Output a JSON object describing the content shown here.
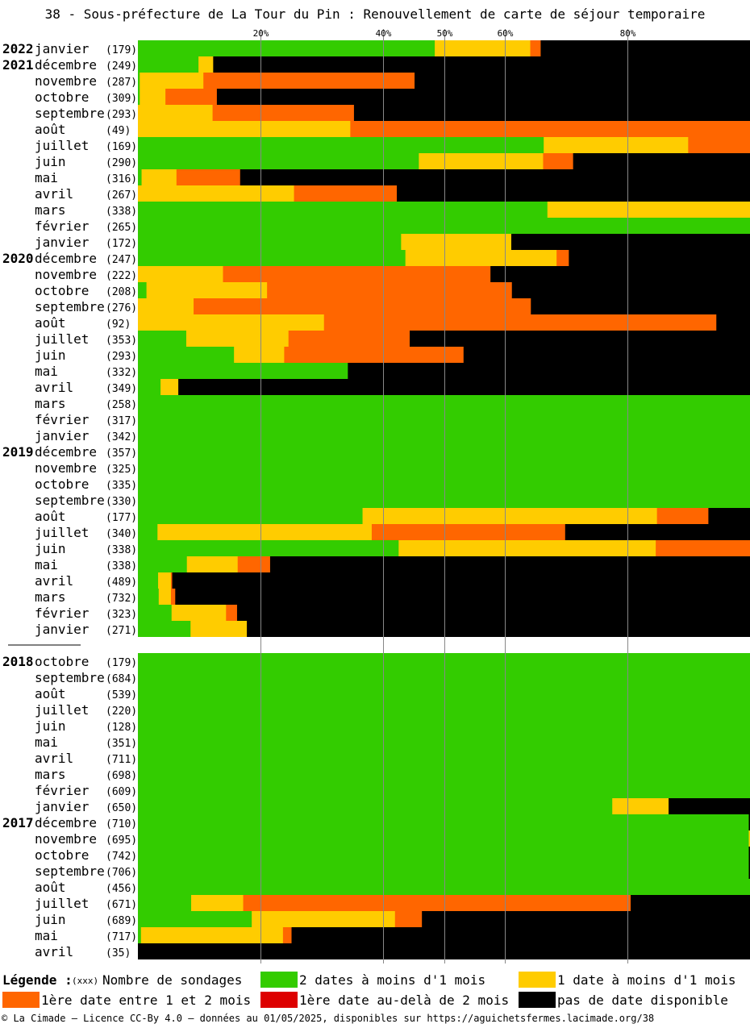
{
  "title": "38 - Sous-préfecture de La Tour du Pin : Renouvellement de carte de séjour temporaire",
  "footer": "© La Cimade — Licence CC-By 4.0 — données au 01/05/2025, disponibles sur https://aguichetsfermes.lacimade.org/38",
  "legend": {
    "title": "Légende :",
    "count_marker": "(xxx)",
    "count_label": "Nombre de sondages",
    "items": [
      {
        "label": "2 dates à moins d'1 mois",
        "color": "#33cc00"
      },
      {
        "label": "1 date à moins d'1 mois",
        "color": "#ffcc00"
      },
      {
        "label": "1ère date entre 1 et 2 mois",
        "color": "#ff6600"
      },
      {
        "label": "1ère date au-delà de 2 mois",
        "color": "#dd0000"
      },
      {
        "label": "pas de date disponible",
        "color": "#000000"
      }
    ]
  },
  "chart_data": {
    "type": "bar",
    "orientation": "horizontal",
    "stacked": true,
    "unit": "%",
    "x_ticks": [
      "20%",
      "40%",
      "50%",
      "60%",
      "80%"
    ],
    "x_tick_values": [
      20,
      40,
      50,
      60,
      80
    ],
    "xlim": [
      0,
      100
    ],
    "series": [
      {
        "name": "2 dates à moins d'1 mois",
        "color": "#33cc00"
      },
      {
        "name": "1 date à moins d'1 mois",
        "color": "#ffcc00"
      },
      {
        "name": "1ère date entre 1 et 2 mois",
        "color": "#ff6600"
      },
      {
        "name": "1ère date au-delà de 2 mois",
        "color": "#dd0000"
      },
      {
        "name": "pas de date disponible",
        "color": "#000000"
      }
    ],
    "groups": [
      {
        "rows": [
          {
            "year": "2022",
            "month": "janvier",
            "n": "(179)",
            "v": [
              48.5,
              15.6,
              1.7,
              0,
              34.2
            ]
          },
          {
            "year": "2021",
            "month": "décembre",
            "n": "(249)",
            "v": [
              9.9,
              2.4,
              0,
              0,
              87.7
            ]
          },
          {
            "year": "",
            "month": "novembre",
            "n": "(287)",
            "v": [
              0.3,
              10.4,
              34.5,
              0,
              54.8
            ]
          },
          {
            "year": "",
            "month": "octobre",
            "n": "(309)",
            "v": [
              0.3,
              4.2,
              8.4,
              0,
              87.1
            ]
          },
          {
            "year": "",
            "month": "septembre",
            "n": "(293)",
            "v": [
              0,
              12.2,
              23.1,
              0,
              64.7
            ]
          },
          {
            "year": "",
            "month": "août",
            "n": "(49)",
            "v": [
              0,
              34.7,
              65.3,
              0,
              0
            ]
          },
          {
            "year": "",
            "month": "juillet",
            "n": "(169)",
            "v": [
              66.3,
              23.6,
              10.1,
              0,
              0
            ]
          },
          {
            "year": "",
            "month": "juin",
            "n": "(290)",
            "v": [
              45.9,
              20.3,
              4.9,
              0,
              28.9
            ]
          },
          {
            "year": "",
            "month": "mai",
            "n": "(316)",
            "v": [
              0.6,
              5.7,
              10.4,
              0,
              83.3
            ]
          },
          {
            "year": "",
            "month": "avril",
            "n": "(267)",
            "v": [
              0,
              25.5,
              16.8,
              0,
              57.7
            ]
          },
          {
            "year": "",
            "month": "mars",
            "n": "(338)",
            "v": [
              66.9,
              33.1,
              0,
              0,
              0
            ]
          },
          {
            "year": "",
            "month": "février",
            "n": "(265)",
            "v": [
              100,
              0,
              0,
              0,
              0
            ]
          },
          {
            "year": "",
            "month": "janvier",
            "n": "(172)",
            "v": [
              43.0,
              18.0,
              0,
              0,
              39.0
            ]
          },
          {
            "year": "2020",
            "month": "décembre",
            "n": "(247)",
            "v": [
              43.7,
              24.7,
              2.0,
              0,
              29.6
            ]
          },
          {
            "year": "",
            "month": "novembre",
            "n": "(222)",
            "v": [
              0,
              13.9,
              43.7,
              0,
              42.4
            ]
          },
          {
            "year": "",
            "month": "octobre",
            "n": "(208)",
            "v": [
              1.4,
              19.7,
              40.0,
              0,
              38.9
            ]
          },
          {
            "year": "",
            "month": "septembre",
            "n": "(276)",
            "v": [
              0,
              9.1,
              55.1,
              0,
              35.8
            ]
          },
          {
            "year": "",
            "month": "août",
            "n": "(92)",
            "v": [
              0,
              30.4,
              64.1,
              0,
              5.5
            ]
          },
          {
            "year": "",
            "month": "juillet",
            "n": "(353)",
            "v": [
              7.9,
              16.7,
              19.8,
              0,
              55.6
            ]
          },
          {
            "year": "",
            "month": "juin",
            "n": "(293)",
            "v": [
              15.7,
              8.2,
              29.3,
              0,
              46.8
            ]
          },
          {
            "year": "",
            "month": "mai",
            "n": "(332)",
            "v": [
              34.3,
              0,
              0,
              0,
              65.7
            ]
          },
          {
            "year": "",
            "month": "avril",
            "n": "(349)",
            "v": [
              3.7,
              2.9,
              0,
              0,
              93.4
            ]
          },
          {
            "year": "",
            "month": "mars",
            "n": "(258)",
            "v": [
              100,
              0,
              0,
              0,
              0
            ]
          },
          {
            "year": "",
            "month": "février",
            "n": "(317)",
            "v": [
              100,
              0,
              0,
              0,
              0
            ]
          },
          {
            "year": "",
            "month": "janvier",
            "n": "(342)",
            "v": [
              100,
              0,
              0,
              0,
              0
            ]
          },
          {
            "year": "2019",
            "month": "décembre",
            "n": "(357)",
            "v": [
              100,
              0,
              0,
              0,
              0
            ]
          },
          {
            "year": "",
            "month": "novembre",
            "n": "(325)",
            "v": [
              100,
              0,
              0,
              0,
              0
            ]
          },
          {
            "year": "",
            "month": "octobre",
            "n": "(335)",
            "v": [
              100,
              0,
              0,
              0,
              0
            ]
          },
          {
            "year": "",
            "month": "septembre",
            "n": "(330)",
            "v": [
              100,
              0,
              0,
              0,
              0
            ]
          },
          {
            "year": "",
            "month": "août",
            "n": "(177)",
            "v": [
              36.7,
              48.1,
              8.4,
              0,
              6.8
            ]
          },
          {
            "year": "",
            "month": "juillet",
            "n": "(340)",
            "v": [
              3.2,
              35.0,
              31.6,
              0,
              30.2
            ]
          },
          {
            "year": "",
            "month": "juin",
            "n": "(338)",
            "v": [
              42.6,
              42.0,
              15.4,
              0,
              0
            ]
          },
          {
            "year": "",
            "month": "mai",
            "n": "(338)",
            "v": [
              8.0,
              8.3,
              5.3,
              0,
              78.4
            ]
          },
          {
            "year": "",
            "month": "avril",
            "n": "(489)",
            "v": [
              3.3,
              2.1,
              0.2,
              0,
              94.4
            ]
          },
          {
            "year": "",
            "month": "mars",
            "n": "(732)",
            "v": [
              3.4,
              2.0,
              0.7,
              0,
              93.9
            ]
          },
          {
            "year": "",
            "month": "février",
            "n": "(323)",
            "v": [
              5.5,
              8.9,
              1.8,
              0,
              83.8
            ]
          },
          {
            "year": "",
            "month": "janvier",
            "n": "(271)",
            "v": [
              8.6,
              9.2,
              0,
              0,
              82.2
            ]
          }
        ]
      },
      {
        "rows": [
          {
            "year": "2018",
            "month": "octobre",
            "n": "(179)",
            "v": [
              100,
              0,
              0,
              0,
              0
            ]
          },
          {
            "year": "",
            "month": "septembre",
            "n": "(684)",
            "v": [
              100,
              0,
              0,
              0,
              0
            ]
          },
          {
            "year": "",
            "month": "août",
            "n": "(539)",
            "v": [
              100,
              0,
              0,
              0,
              0
            ]
          },
          {
            "year": "",
            "month": "juillet",
            "n": "(220)",
            "v": [
              100,
              0,
              0,
              0,
              0
            ]
          },
          {
            "year": "",
            "month": "juin",
            "n": "(128)",
            "v": [
              100,
              0,
              0,
              0,
              0
            ]
          },
          {
            "year": "",
            "month": "mai",
            "n": "(351)",
            "v": [
              100,
              0,
              0,
              0,
              0
            ]
          },
          {
            "year": "",
            "month": "avril",
            "n": "(711)",
            "v": [
              100,
              0,
              0,
              0,
              0
            ]
          },
          {
            "year": "",
            "month": "mars",
            "n": "(698)",
            "v": [
              100,
              0,
              0,
              0,
              0
            ]
          },
          {
            "year": "",
            "month": "février",
            "n": "(609)",
            "v": [
              100,
              0,
              0,
              0,
              0
            ]
          },
          {
            "year": "",
            "month": "janvier",
            "n": "(650)",
            "v": [
              77.5,
              9.2,
              0,
              0,
              13.3
            ]
          },
          {
            "year": "2017",
            "month": "décembre",
            "n": "(710)",
            "v": [
              99.8,
              0,
              0,
              0,
              0.2
            ]
          },
          {
            "year": "",
            "month": "novembre",
            "n": "(695)",
            "v": [
              99.8,
              0.2,
              0,
              0,
              0
            ]
          },
          {
            "year": "",
            "month": "octobre",
            "n": "(742)",
            "v": [
              99.8,
              0,
              0,
              0,
              0.2
            ]
          },
          {
            "year": "",
            "month": "septembre",
            "n": "(706)",
            "v": [
              99.8,
              0,
              0,
              0,
              0.2
            ]
          },
          {
            "year": "",
            "month": "août",
            "n": "(456)",
            "v": [
              100,
              0,
              0,
              0,
              0
            ]
          },
          {
            "year": "",
            "month": "juillet",
            "n": "(671)",
            "v": [
              8.7,
              8.5,
              63.3,
              0,
              19.5
            ]
          },
          {
            "year": "",
            "month": "juin",
            "n": "(689)",
            "v": [
              18.6,
              23.4,
              4.4,
              0,
              53.6
            ]
          },
          {
            "year": "",
            "month": "mai",
            "n": "(717)",
            "v": [
              0.5,
              23.2,
              1.4,
              0,
              74.9
            ]
          },
          {
            "year": "",
            "month": "avril",
            "n": "(35)",
            "v": [
              0,
              0,
              0,
              0,
              100
            ]
          }
        ]
      }
    ]
  }
}
